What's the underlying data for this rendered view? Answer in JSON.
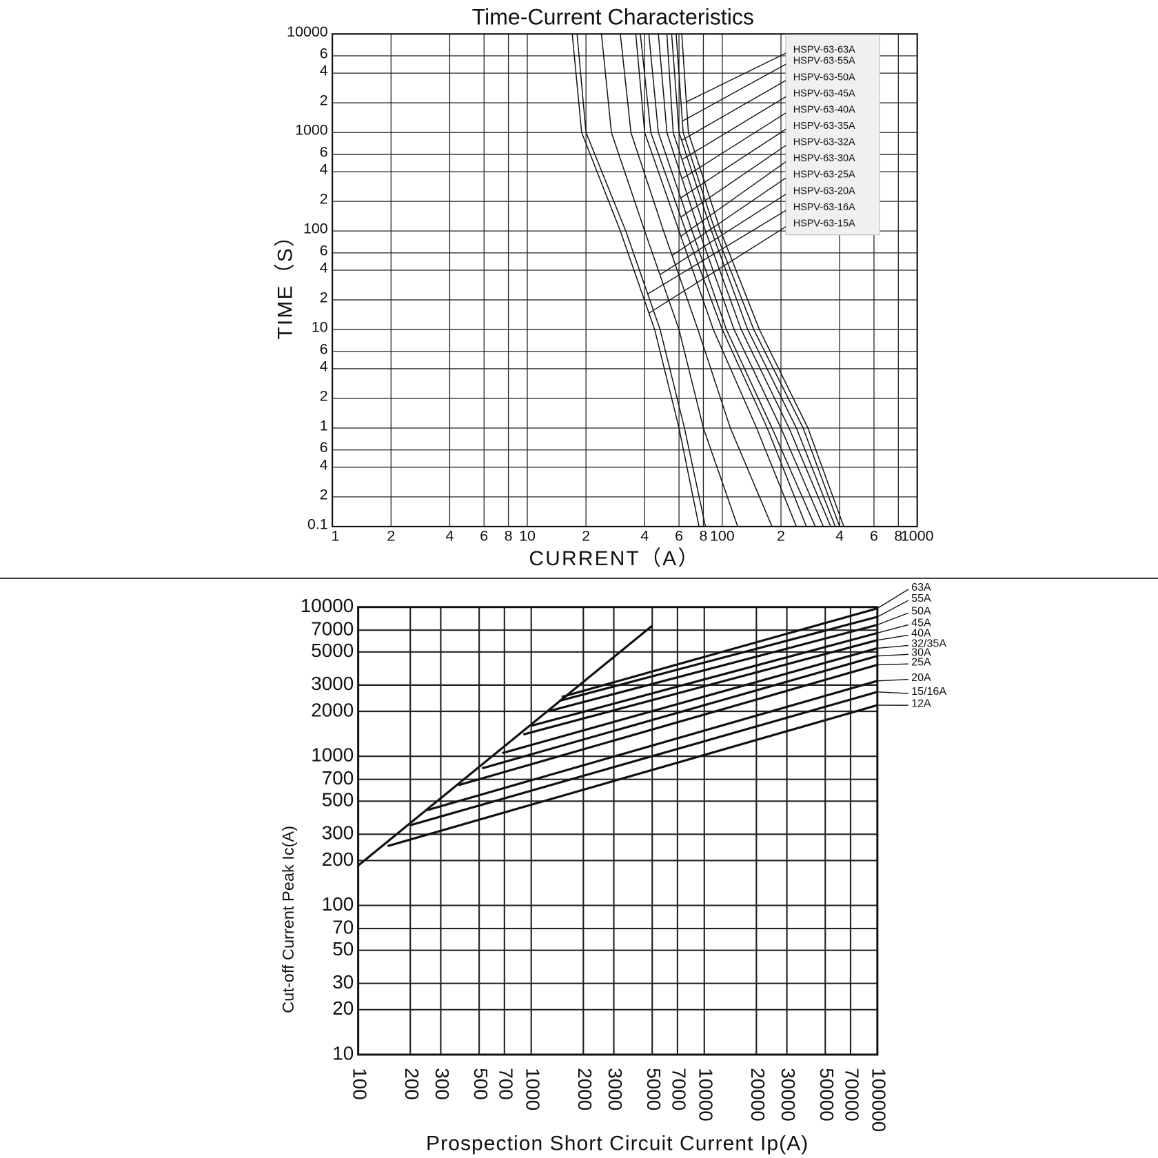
{
  "chart_data": [
    {
      "type": "line",
      "title": "Time-Current Characteristics",
      "x_label": "CURRENT（A）",
      "y_label": "TIME（S）",
      "xscale": "log",
      "yscale": "log",
      "grid": true,
      "legend": "upper right",
      "color": "#111111",
      "xlim": [
        1,
        1000
      ],
      "ylim": [
        0.1,
        10000
      ],
      "xticks": [
        1,
        2,
        4,
        6,
        8,
        10,
        {
          "value": 20,
          "label": "2"
        },
        {
          "value": 40,
          "label": "4"
        },
        {
          "value": 60,
          "label": "6"
        },
        {
          "value": 80,
          "label": "8"
        },
        100,
        {
          "value": 200,
          "label": "2"
        },
        {
          "value": 400,
          "label": "4"
        },
        {
          "value": 600,
          "label": "6"
        },
        {
          "value": 800,
          "label": "8"
        },
        1000
      ],
      "yticks": [
        10000,
        {
          "value": 6000,
          "label": "6"
        },
        {
          "value": 4000,
          "label": "4"
        },
        {
          "value": 2000,
          "label": "2"
        },
        1000,
        {
          "value": 600,
          "label": "6"
        },
        {
          "value": 400,
          "label": "4"
        },
        {
          "value": 200,
          "label": "2"
        },
        100,
        {
          "value": 60,
          "label": "6"
        },
        {
          "value": 40,
          "label": "4"
        },
        {
          "value": 20,
          "label": "2"
        },
        10,
        6,
        4,
        2,
        1,
        {
          "value": 0.6,
          "label": "6"
        },
        {
          "value": 0.4,
          "label": "4"
        },
        {
          "value": 0.2,
          "label": "2"
        },
        0.1
      ],
      "series": [
        {
          "name": "HSPV-63-63A",
          "color": "#111111",
          "x": [
            62,
            67,
            98,
            155,
            275,
            420
          ],
          "values": [
            10000,
            1000,
            100,
            10,
            1,
            0.1
          ]
        },
        {
          "name": "HSPV-63-55A",
          "color": "#111111",
          "x": [
            58,
            63,
            92,
            145,
            260,
            400
          ],
          "values": [
            10000,
            1000,
            100,
            10,
            1,
            0.1
          ]
        },
        {
          "name": "HSPV-63-50A",
          "color": "#111111",
          "x": [
            55,
            60,
            88,
            135,
            240,
            380
          ],
          "values": [
            10000,
            1000,
            100,
            10,
            1,
            0.1
          ]
        },
        {
          "name": "HSPV-63-45A",
          "color": "#111111",
          "x": [
            52,
            56,
            82,
            125,
            220,
            360
          ],
          "values": [
            10000,
            1000,
            100,
            10,
            1,
            0.1
          ]
        },
        {
          "name": "HSPV-63-40A",
          "color": "#111111",
          "x": [
            47,
            52,
            76,
            115,
            200,
            330
          ],
          "values": [
            10000,
            1000,
            100,
            10,
            1,
            0.1
          ]
        },
        {
          "name": "HSPV-63-35A",
          "color": "#111111",
          "x": [
            42,
            47,
            70,
            105,
            180,
            300
          ],
          "values": [
            10000,
            1000,
            100,
            10,
            1,
            0.1
          ]
        },
        {
          "name": "HSPV-63-32A",
          "color": "#111111",
          "x": [
            38,
            43,
            65,
            100,
            170,
            270
          ],
          "values": [
            10000,
            1000,
            100,
            10,
            1,
            0.1
          ]
        },
        {
          "name": "HSPV-63-30A",
          "color": "#111111",
          "x": [
            36,
            40,
            60,
            90,
            150,
            240
          ],
          "values": [
            10000,
            1000,
            100,
            10,
            1,
            0.1
          ]
        },
        {
          "name": "HSPV-63-25A",
          "color": "#111111",
          "x": [
            30,
            34,
            50,
            75,
            110,
            180
          ],
          "values": [
            10000,
            1000,
            100,
            10,
            1,
            0.1
          ]
        },
        {
          "name": "HSPV-63-20A",
          "color": "#111111",
          "x": [
            24,
            27,
            40,
            60,
            80,
            120
          ],
          "values": [
            10000,
            1000,
            100,
            10,
            1,
            0.1
          ]
        },
        {
          "name": "HSPV-63-16A",
          "color": "#111111",
          "x": [
            18,
            20,
            32,
            48,
            64,
            82
          ],
          "values": [
            10000,
            1000,
            100,
            10,
            1,
            0.1
          ]
        },
        {
          "name": "HSPV-63-15A",
          "color": "#111111",
          "x": [
            17,
            19,
            30,
            45,
            60,
            76
          ],
          "values": [
            10000,
            1000,
            100,
            10,
            1,
            0.1
          ]
        }
      ]
    },
    {
      "type": "line",
      "x_label": "Prospection Short Circuit Current Ip(A)",
      "y_label": "Cut-off Current Peak Ic(A)",
      "xscale": "log",
      "yscale": "log",
      "grid": true,
      "legend": "right",
      "color": "#111111",
      "xlim": [
        100,
        100000
      ],
      "ylim": [
        10,
        10000
      ],
      "xticks": [
        100,
        200,
        300,
        500,
        700,
        1000,
        2000,
        3000,
        5000,
        7000,
        10000,
        20000,
        30000,
        50000,
        70000,
        100000
      ],
      "yticks": [
        10,
        20,
        30,
        50,
        70,
        100,
        200,
        300,
        500,
        700,
        1000,
        2000,
        3000,
        5000,
        7000,
        10000
      ],
      "series": [
        {
          "name": "63A",
          "color": "#111111",
          "x": [
            1500,
            100000
          ],
          "values": [
            2500,
            9800
          ]
        },
        {
          "name": "55A",
          "color": "#111111",
          "x": [
            1450,
            100000
          ],
          "values": [
            2350,
            8600
          ]
        },
        {
          "name": "50A",
          "color": "#111111",
          "x": [
            1250,
            100000
          ],
          "values": [
            2000,
            7600
          ]
        },
        {
          "name": "45A",
          "color": "#111111",
          "x": [
            1000,
            100000
          ],
          "values": [
            1600,
            6700
          ]
        },
        {
          "name": "40A",
          "color": "#111111",
          "x": [
            900,
            100000
          ],
          "values": [
            1400,
            6000
          ]
        },
        {
          "name": "32/35A",
          "color": "#111111",
          "x": [
            680,
            100000
          ],
          "values": [
            1050,
            5300
          ]
        },
        {
          "name": "30A",
          "color": "#111111",
          "x": [
            520,
            100000
          ],
          "values": [
            830,
            4700
          ]
        },
        {
          "name": "25A",
          "color": "#111111",
          "x": [
            380,
            100000
          ],
          "values": [
            640,
            4100
          ]
        },
        {
          "name": "20A",
          "color": "#111111",
          "x": [
            250,
            100000
          ],
          "values": [
            435,
            3200
          ]
        },
        {
          "name": "15/16A",
          "color": "#111111",
          "x": [
            200,
            100000
          ],
          "values": [
            345,
            2700
          ]
        },
        {
          "name": "12A",
          "color": "#111111",
          "x": [
            148,
            100000
          ],
          "values": [
            250,
            2200
          ]
        },
        {
          "color": "#111111",
          "x": [
            100,
            5000
          ],
          "values": [
            185,
            7500
          ]
        }
      ]
    }
  ]
}
